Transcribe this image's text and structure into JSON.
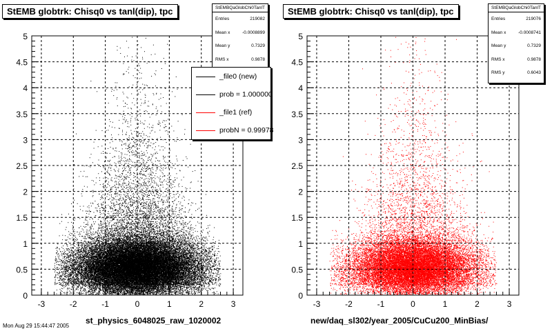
{
  "colors": {
    "file0": "#000000",
    "file1": "#ff0000"
  },
  "legend": {
    "entries": [
      {
        "label": "_file0 (new)",
        "color": "#000000"
      },
      {
        "label": "prob = 1.000000",
        "color": "#000000"
      },
      {
        "label": "_file1 (ref)",
        "color": "#ff0000"
      },
      {
        "label": "probN = 0.99978",
        "color": "#ff0000"
      }
    ]
  },
  "stamp": "Mon Aug 29 15:44:47 2005",
  "chart_data": [
    {
      "type": "scatter",
      "title": "StEMB globtrk: Chisq0 vs tanl(dip), tpc",
      "xlabel": "st_physics_6048025_raw_1020002",
      "ylabel": "",
      "xlim": [
        -3.3,
        3.3
      ],
      "ylim": [
        0,
        5
      ],
      "xticks": [
        "-3",
        "-2",
        "-1",
        "0",
        "1",
        "2",
        "3"
      ],
      "yticks": [
        "0",
        "0.5",
        "1",
        "1.5",
        "2",
        "2.5",
        "3",
        "3.5",
        "4",
        "4.5",
        "5"
      ],
      "grid": true,
      "color": "#000000",
      "stats": {
        "name": "StEMBQaGlobChi0TanlT",
        "rows": [
          {
            "label": "Entries",
            "value": "219082"
          },
          {
            "label": "Mean x",
            "value": "-0.0008899"
          },
          {
            "label": "Mean y",
            "value": "0.7329"
          },
          {
            "label": "RMS x",
            "value": "0.9878"
          }
        ]
      },
      "distribution": {
        "n": 35000,
        "x_mean": 0.0,
        "x_rms": 0.99,
        "y_core_mean": 0.55,
        "y_core_rms": 0.27,
        "y_tail_scale": 1.1
      }
    },
    {
      "type": "scatter",
      "title": "StEMB globtrk: Chisq0 vs tanl(dip), tpc",
      "xlabel": "new/daq_sl302/year_2005/CuCu200_MinBias/",
      "ylabel": "",
      "xlim": [
        -3.3,
        3.3
      ],
      "ylim": [
        0,
        5
      ],
      "xticks": [
        "-3",
        "-2",
        "-1",
        "0",
        "1",
        "2",
        "3"
      ],
      "yticks": [
        "0",
        "0.5",
        "1",
        "1.5",
        "2",
        "2.5",
        "3",
        "3.5",
        "4",
        "4.5",
        "5"
      ],
      "grid": true,
      "color": "#ff0000",
      "stats": {
        "name": "StEMBQaGlobChi0TanlT",
        "rows": [
          {
            "label": "Entries",
            "value": "219076"
          },
          {
            "label": "Mean x",
            "value": "-0.0008741"
          },
          {
            "label": "Mean y",
            "value": "0.7329"
          },
          {
            "label": "RMS x",
            "value": "0.9878"
          },
          {
            "label": "RMS y",
            "value": "0.6043"
          }
        ]
      },
      "distribution": {
        "n": 22000,
        "x_mean": 0.0,
        "x_rms": 0.99,
        "y_core_mean": 0.55,
        "y_core_rms": 0.27,
        "y_tail_scale": 1.1
      }
    }
  ]
}
